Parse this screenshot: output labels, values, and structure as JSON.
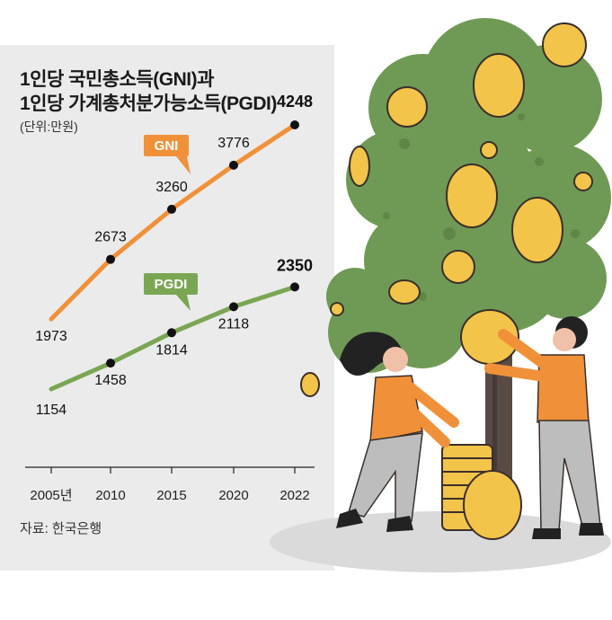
{
  "header": {
    "title_line1": "1인당 국민총소득(GNI)과",
    "title_line2": "1인당 가계총처분가능소득(PGDI)",
    "unit": "(단위:만원)"
  },
  "footer": {
    "source": "자료: 한국은행"
  },
  "colors": {
    "gni": "#f0913a",
    "pgdi": "#7aa653",
    "panel": "#ebebeb",
    "tree": "#6f9a55",
    "coin": "#f3c44a"
  },
  "chart_data": {
    "type": "line",
    "categories": [
      "2005년",
      "2010",
      "2015",
      "2020",
      "2022"
    ],
    "series": [
      {
        "name": "GNI",
        "values": [
          1973,
          2673,
          3260,
          3776,
          4248
        ]
      },
      {
        "name": "PGDI",
        "values": [
          1154,
          1458,
          1814,
          2118,
          2350
        ]
      }
    ]
  }
}
